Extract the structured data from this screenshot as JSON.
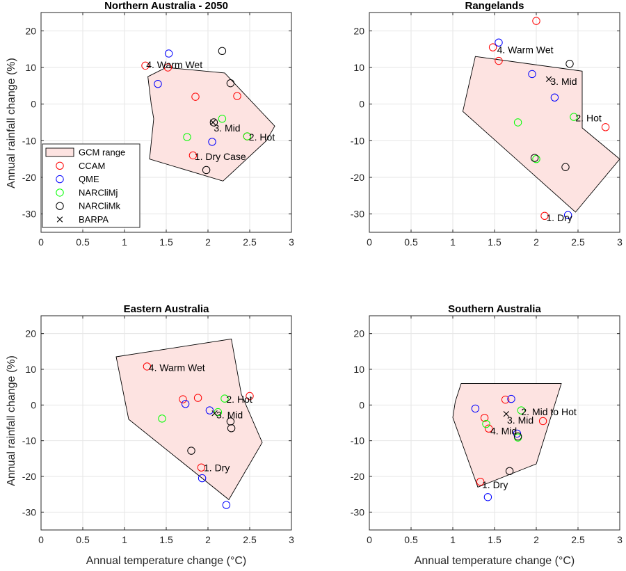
{
  "figure": {
    "xlabel": "Annual temperature change (°C)",
    "ylabel": "Annual rainfall change (%)"
  },
  "legend": {
    "placement": "inside-bottom-left of first panel",
    "entries": [
      {
        "label": "GCM range",
        "marker": "patch",
        "color": "#f4c7c3"
      },
      {
        "label": "CCAM",
        "marker": "circle",
        "color": "#ff0000"
      },
      {
        "label": "QME",
        "marker": "circle",
        "color": "#0000ff"
      },
      {
        "label": "NARCliMj",
        "marker": "circle",
        "color": "#00ff00"
      },
      {
        "label": "NARCliMk",
        "marker": "circle",
        "color": "#000000"
      },
      {
        "label": "BARPA",
        "marker": "x",
        "color": "#000000"
      }
    ]
  },
  "colors": {
    "CCAM": "#ff0000",
    "QME": "#0000ff",
    "NARCliMj": "#00ff00",
    "NARCliMk": "#000000",
    "BARPA": "#000000",
    "gcm_fill": "#fde3e1",
    "grid": "#e6e6e6"
  },
  "chart_data": [
    {
      "type": "scatter",
      "title": "Northern Australia - 2050",
      "xlim": [
        0,
        3
      ],
      "ylim": [
        -35,
        25
      ],
      "xticks": [
        0,
        0.5,
        1,
        1.5,
        2,
        2.5,
        3
      ],
      "xtick_labels": [
        "0",
        "0.5",
        "1",
        "1.5",
        "2",
        "2.5",
        "3"
      ],
      "yticks": [
        -30,
        -20,
        -10,
        0,
        10,
        20
      ],
      "ytick_labels": [
        "-30",
        "-20",
        "-10",
        "0",
        "10",
        "20"
      ],
      "grid": true,
      "gcm_range": [
        [
          1.28,
          7.5
        ],
        [
          1.5,
          10.0
        ],
        [
          2.2,
          8.5
        ],
        [
          2.8,
          -6.0
        ],
        [
          2.7,
          -10.0
        ],
        [
          2.18,
          -21.0
        ],
        [
          1.3,
          -15.0
        ],
        [
          1.35,
          -4.0
        ],
        [
          1.32,
          0.0
        ]
      ],
      "series": [
        {
          "name": "CCAM",
          "points": [
            [
              1.25,
              10.5
            ],
            [
              1.52,
              10.0
            ],
            [
              1.85,
              2.0
            ],
            [
              2.35,
              2.2
            ],
            [
              2.47,
              -8.8
            ],
            [
              1.82,
              -14.0
            ]
          ]
        },
        {
          "name": "QME",
          "points": [
            [
              1.53,
              13.8
            ],
            [
              1.4,
              5.5
            ],
            [
              2.05,
              -10.3
            ]
          ]
        },
        {
          "name": "NARCliMj",
          "points": [
            [
              2.17,
              -4.0
            ],
            [
              1.75,
              -9.0
            ],
            [
              2.47,
              -8.8
            ]
          ]
        },
        {
          "name": "NARCliMk",
          "points": [
            [
              2.17,
              14.5
            ],
            [
              2.27,
              5.7
            ],
            [
              2.07,
              -5.0
            ],
            [
              1.98,
              -18.0
            ]
          ]
        },
        {
          "name": "BARPA",
          "points": [
            [
              2.06,
              -5.0
            ]
          ]
        }
      ],
      "annotations": [
        {
          "text": "4. Warm Wet",
          "x": 1.26,
          "y": 10.8
        },
        {
          "text": "3. Mid",
          "x": 2.07,
          "y": -6.5
        },
        {
          "text": "2. Hot",
          "x": 2.49,
          "y": -9.0
        },
        {
          "text": "1. Dry Case",
          "x": 1.84,
          "y": -14.3
        }
      ]
    },
    {
      "type": "scatter",
      "title": "Rangelands",
      "xlim": [
        0,
        3
      ],
      "ylim": [
        -35,
        25
      ],
      "xticks": [
        0,
        0.5,
        1,
        1.5,
        2,
        2.5,
        3
      ],
      "xtick_labels": [
        "0",
        "0.5",
        "1",
        "1.5",
        "2",
        "2.5",
        "3"
      ],
      "yticks": [
        -30,
        -20,
        -10,
        0,
        10,
        20
      ],
      "ytick_labels": [
        "-30",
        "-20",
        "-10",
        "0",
        "10",
        "20"
      ],
      "grid": true,
      "gcm_range": [
        [
          1.27,
          13.0
        ],
        [
          2.55,
          9.0
        ],
        [
          2.55,
          -6.5
        ],
        [
          3.0,
          -15.0
        ],
        [
          2.47,
          -29.5
        ],
        [
          1.12,
          -2.0
        ]
      ],
      "series": [
        {
          "name": "CCAM",
          "points": [
            [
              2.0,
              22.7
            ],
            [
              1.48,
              15.5
            ],
            [
              1.55,
              11.8
            ],
            [
              2.83,
              -6.3
            ],
            [
              2.1,
              -30.5
            ]
          ]
        },
        {
          "name": "QME",
          "points": [
            [
              1.55,
              16.8
            ],
            [
              1.95,
              8.2
            ],
            [
              2.22,
              1.8
            ],
            [
              2.38,
              -30.3
            ]
          ]
        },
        {
          "name": "NARCliMj",
          "points": [
            [
              1.78,
              -5.0
            ],
            [
              2.45,
              -3.5
            ],
            [
              2.0,
              -15.0
            ]
          ]
        },
        {
          "name": "NARCliMk",
          "points": [
            [
              2.4,
              11.0
            ],
            [
              1.98,
              -14.7
            ],
            [
              2.35,
              -17.2
            ]
          ]
        },
        {
          "name": "BARPA",
          "points": [
            [
              2.15,
              6.8
            ]
          ]
        }
      ],
      "annotations": [
        {
          "text": "4. Warm Wet",
          "x": 1.53,
          "y": 14.8
        },
        {
          "text": "3. Mid",
          "x": 2.17,
          "y": 6.2
        },
        {
          "text": "2. Hot",
          "x": 2.47,
          "y": -3.8
        },
        {
          "text": "1. Dry",
          "x": 2.12,
          "y": -31.0
        }
      ]
    },
    {
      "type": "scatter",
      "title": "Eastern Australia",
      "xlim": [
        0,
        3
      ],
      "ylim": [
        -35,
        25
      ],
      "xticks": [
        0,
        0.5,
        1,
        1.5,
        2,
        2.5,
        3
      ],
      "xtick_labels": [
        "0",
        "0.5",
        "1",
        "1.5",
        "2",
        "2.5",
        "3"
      ],
      "yticks": [
        -30,
        -20,
        -10,
        0,
        10,
        20
      ],
      "ytick_labels": [
        "-30",
        "-20",
        "-10",
        "0",
        "10",
        "20"
      ],
      "grid": true,
      "gcm_range": [
        [
          0.9,
          13.5
        ],
        [
          2.28,
          18.5
        ],
        [
          2.4,
          3.0
        ],
        [
          2.65,
          -10.5
        ],
        [
          2.25,
          -26.5
        ],
        [
          1.05,
          -4.0
        ]
      ],
      "series": [
        {
          "name": "CCAM",
          "points": [
            [
              1.27,
              10.8
            ],
            [
              1.7,
              1.6
            ],
            [
              1.88,
              2.0
            ],
            [
              2.5,
              2.5
            ],
            [
              1.92,
              -17.5
            ]
          ]
        },
        {
          "name": "QME",
          "points": [
            [
              1.73,
              0.3
            ],
            [
              2.02,
              -1.5
            ],
            [
              1.93,
              -20.5
            ],
            [
              2.22,
              -28.0
            ]
          ]
        },
        {
          "name": "NARCliMj",
          "points": [
            [
              1.45,
              -3.8
            ],
            [
              2.2,
              1.8
            ],
            [
              2.12,
              -2.0
            ]
          ]
        },
        {
          "name": "NARCliMk",
          "points": [
            [
              2.27,
              -4.6
            ],
            [
              2.28,
              -6.5
            ],
            [
              1.8,
              -12.8
            ]
          ]
        },
        {
          "name": "BARPA",
          "points": [
            [
              2.08,
              -2.3
            ]
          ]
        }
      ],
      "annotations": [
        {
          "text": "4. Warm Wet",
          "x": 1.29,
          "y": 10.5
        },
        {
          "text": "2. Hot",
          "x": 2.22,
          "y": 1.6
        },
        {
          "text": "3. Mid",
          "x": 2.1,
          "y": -2.8
        },
        {
          "text": "1. Dry",
          "x": 1.95,
          "y": -17.6
        }
      ]
    },
    {
      "type": "scatter",
      "title": "Southern Australia",
      "xlim": [
        0,
        3
      ],
      "ylim": [
        -35,
        25
      ],
      "xticks": [
        0,
        0.5,
        1,
        1.5,
        2,
        2.5,
        3
      ],
      "xtick_labels": [
        "0",
        "0.5",
        "1",
        "1.5",
        "2",
        "2.5",
        "3"
      ],
      "yticks": [
        -30,
        -20,
        -10,
        0,
        10,
        20
      ],
      "ytick_labels": [
        "-30",
        "-20",
        "-10",
        "0",
        "10",
        "20"
      ],
      "grid": true,
      "gcm_range": [
        [
          1.1,
          6.0
        ],
        [
          2.3,
          6.0
        ],
        [
          2.0,
          -16.5
        ],
        [
          1.3,
          -23.0
        ],
        [
          1.0,
          -3.5
        ],
        [
          1.03,
          1.0
        ]
      ],
      "series": [
        {
          "name": "CCAM",
          "points": [
            [
              1.63,
              1.5
            ],
            [
              1.38,
              -3.6
            ],
            [
              2.08,
              -4.5
            ],
            [
              1.43,
              -6.6
            ],
            [
              1.33,
              -21.5
            ]
          ]
        },
        {
          "name": "QME",
          "points": [
            [
              1.27,
              -1.0
            ],
            [
              1.7,
              1.7
            ],
            [
              1.77,
              -8.0
            ],
            [
              1.42,
              -25.8
            ]
          ]
        },
        {
          "name": "NARCliMj",
          "points": [
            [
              1.82,
              -1.5
            ],
            [
              1.4,
              -5.3
            ],
            [
              1.78,
              -9.1
            ]
          ]
        },
        {
          "name": "NARCliMk",
          "points": [
            [
              1.68,
              -18.5
            ],
            [
              1.78,
              -8.8
            ]
          ]
        },
        {
          "name": "BARPA",
          "points": [
            [
              1.64,
              -2.5
            ]
          ]
        }
      ],
      "annotations": [
        {
          "text": "2. Mid to Hot",
          "x": 1.82,
          "y": -1.9
        },
        {
          "text": "3. Mid",
          "x": 1.65,
          "y": -4.2
        },
        {
          "text": "4. Mid",
          "x": 1.45,
          "y": -7.2
        },
        {
          "text": "1. Dry",
          "x": 1.35,
          "y": -22.3
        }
      ]
    }
  ]
}
